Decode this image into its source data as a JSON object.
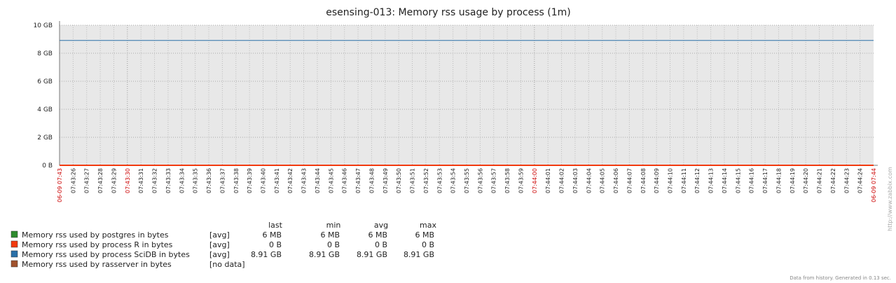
{
  "chart_data": {
    "type": "line",
    "title": "esensing-013: Memory rss usage by process (1m)",
    "categories": [
      "06-09 07:43",
      "07:43:26",
      "07:43:27",
      "07:43:28",
      "07:43:29",
      "07:43:30",
      "07:43:31",
      "07:43:32",
      "07:43:33",
      "07:43:34",
      "07:43:35",
      "07:43:36",
      "07:43:37",
      "07:43:38",
      "07:43:39",
      "07:43:40",
      "07:43:41",
      "07:43:42",
      "07:43:43",
      "07:43:44",
      "07:43:45",
      "07:43:46",
      "07:43:47",
      "07:43:48",
      "07:43:49",
      "07:43:50",
      "07:43:51",
      "07:43:52",
      "07:43:53",
      "07:43:54",
      "07:43:55",
      "07:43:56",
      "07:43:57",
      "07:43:58",
      "07:43:59",
      "07:44:00",
      "07:44:01",
      "07:44:02",
      "07:44:03",
      "07:44:04",
      "07:44:05",
      "07:44:06",
      "07:44:07",
      "07:44:08",
      "07:44:09",
      "07:44:10",
      "07:44:11",
      "07:44:12",
      "07:44:13",
      "07:44:14",
      "07:44:15",
      "07:44:16",
      "07:44:17",
      "07:44:18",
      "07:44:19",
      "07:44:20",
      "07:44:21",
      "07:44:22",
      "07:44:23",
      "07:44:24",
      "06-09 07:44"
    ],
    "series": [
      {
        "name": "Memory rss used by postgres in bytes",
        "color": "#2e8b2e",
        "func": "[avg]",
        "stats": [
          "6 MB",
          "6 MB",
          "6 MB",
          "6 MB"
        ],
        "values": [
          0.006,
          0.006,
          0.006,
          0.006,
          0.006,
          0.006,
          0.006,
          0.006,
          0.006,
          0.006,
          0.006,
          0.006,
          0.006,
          0.006,
          0.006,
          0.006,
          0.006,
          0.006,
          0.006,
          0.006,
          0.006,
          0.006,
          0.006,
          0.006,
          0.006,
          0.006,
          0.006,
          0.006,
          0.006,
          0.006,
          0.006,
          0.006,
          0.006,
          0.006,
          0.006,
          0.006,
          0.006,
          0.006,
          0.006,
          0.006,
          0.006,
          0.006,
          0.006,
          0.006,
          0.006,
          0.006,
          0.006,
          0.006,
          0.006,
          0.006,
          0.006,
          0.006,
          0.006,
          0.006,
          0.006,
          0.006,
          0.006,
          0.006,
          0.006,
          0.006,
          0.006
        ]
      },
      {
        "name": "Memory rss used by process R in bytes",
        "color": "#f23a0f",
        "func": "[avg]",
        "stats": [
          "0 B",
          "0 B",
          "0 B",
          "0 B"
        ],
        "values": [
          0,
          0,
          0,
          0,
          0,
          0,
          0,
          0,
          0,
          0,
          0,
          0,
          0,
          0,
          0,
          0,
          0,
          0,
          0,
          0,
          0,
          0,
          0,
          0,
          0,
          0,
          0,
          0,
          0,
          0,
          0,
          0,
          0,
          0,
          0,
          0,
          0,
          0,
          0,
          0,
          0,
          0,
          0,
          0,
          0,
          0,
          0,
          0,
          0,
          0,
          0,
          0,
          0,
          0,
          0,
          0,
          0,
          0,
          0,
          0,
          0
        ]
      },
      {
        "name": "Memory rss used by process SciDB in bytes",
        "color": "#2a70a8",
        "func": "[avg]",
        "stats": [
          "8.91 GB",
          "8.91 GB",
          "8.91 GB",
          "8.91 GB"
        ],
        "values": [
          8.91,
          8.91,
          8.91,
          8.91,
          8.91,
          8.91,
          8.91,
          8.91,
          8.91,
          8.91,
          8.91,
          8.91,
          8.91,
          8.91,
          8.91,
          8.91,
          8.91,
          8.91,
          8.91,
          8.91,
          8.91,
          8.91,
          8.91,
          8.91,
          8.91,
          8.91,
          8.91,
          8.91,
          8.91,
          8.91,
          8.91,
          8.91,
          8.91,
          8.91,
          8.91,
          8.91,
          8.91,
          8.91,
          8.91,
          8.91,
          8.91,
          8.91,
          8.91,
          8.91,
          8.91,
          8.91,
          8.91,
          8.91,
          8.91,
          8.91,
          8.91,
          8.91,
          8.91,
          8.91,
          8.91,
          8.91,
          8.91,
          8.91,
          8.91,
          8.91,
          8.91
        ]
      },
      {
        "name": "Memory rss used by rasserver in bytes",
        "color": "#a0522d",
        "func": "[no data]",
        "values": [
          null,
          null,
          null,
          null,
          null,
          null,
          null,
          null,
          null,
          null,
          null,
          null,
          null,
          null,
          null,
          null,
          null,
          null,
          null,
          null,
          null,
          null,
          null,
          null,
          null,
          null,
          null,
          null,
          null,
          null,
          null,
          null,
          null,
          null,
          null,
          null,
          null,
          null,
          null,
          null,
          null,
          null,
          null,
          null,
          null,
          null,
          null,
          null,
          null,
          null,
          null,
          null,
          null,
          null,
          null,
          null,
          null,
          null,
          null,
          null,
          null
        ]
      }
    ],
    "stat_headers": [
      "last",
      "min",
      "avg",
      "max"
    ],
    "ylim": [
      0,
      10
    ],
    "yticks": [
      {
        "value": 0,
        "label": "0 B"
      },
      {
        "value": 2,
        "label": "2 GB"
      },
      {
        "value": 4,
        "label": "4 GB"
      },
      {
        "value": 6,
        "label": "6 GB"
      },
      {
        "value": 8,
        "label": "8 GB"
      },
      {
        "value": 10,
        "label": "10 GB"
      }
    ],
    "grid": true,
    "watermark": "http://www.zabbix.com",
    "footer": "Data from history. Generated in 0.13 sec."
  }
}
